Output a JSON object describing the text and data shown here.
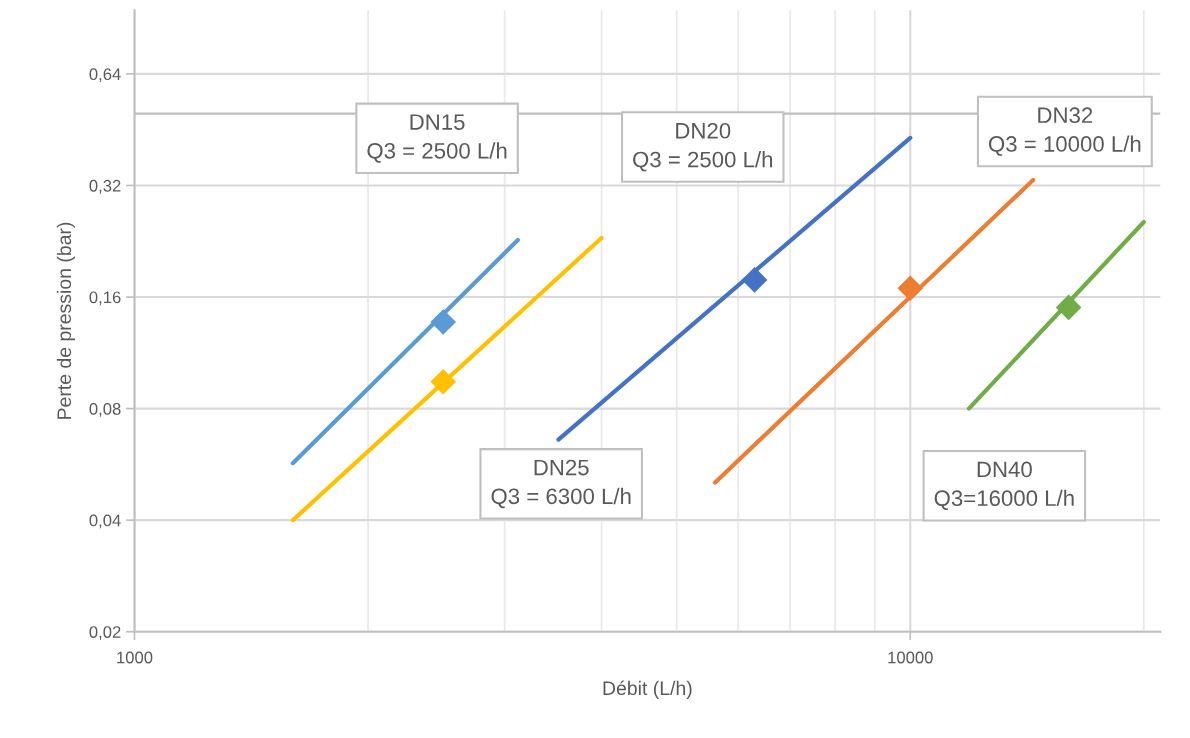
{
  "chart_data": {
    "type": "line",
    "xlabel": "Débit (L/h)",
    "ylabel": "Perte de pression (bar)",
    "log": "xy",
    "xlim": [
      1000,
      21000
    ],
    "xticks": [
      1000,
      10000
    ],
    "ylim": [
      0.02,
      0.95
    ],
    "yticks": [
      {
        "value": 0.02,
        "label": "0,02"
      },
      {
        "value": 0.04,
        "label": "0,04"
      },
      {
        "value": 0.08,
        "label": "0,08"
      },
      {
        "value": 0.16,
        "label": "0,16"
      },
      {
        "value": 0.32,
        "label": "0,32"
      },
      {
        "value": 0.64,
        "label": "0,64"
      }
    ],
    "grid": true,
    "legend": false,
    "line_style": "solid",
    "series": [
      {
        "color": "#5b9bd5",
        "x": [
          1600,
          3120
        ],
        "values": [
          0.057,
          0.228
        ]
      },
      {
        "color": "#ffc000",
        "x": [
          1600,
          4000
        ],
        "values": [
          0.04,
          0.231
        ]
      },
      {
        "color": "#4472c4",
        "x": [
          3520,
          10000
        ],
        "values": [
          0.066,
          0.43
        ]
      },
      {
        "color": "#ed7d31",
        "x": [
          5600,
          14400
        ],
        "values": [
          0.0505,
          0.331
        ]
      },
      {
        "color": "#70ad47",
        "x": [
          11900,
          20000
        ],
        "values": [
          0.08,
          0.255
        ]
      },
      {
        "type": "scatter",
        "marker": "diamond",
        "x": [
          2500,
          2500,
          6300,
          10000,
          16000
        ],
        "values": [
          0.137,
          0.0945,
          0.178,
          0.169,
          0.15
        ],
        "colors": [
          "#5b9bd5",
          "#ffc000",
          "#4472c4",
          "#ed7d31",
          "#70ad47"
        ]
      }
    ],
    "ref_lines": [
      {
        "axis": "y",
        "value": 0.5,
        "color": "#bfbfbf"
      }
    ],
    "annotations": [
      "DN15\nQ3 = 2500 L/h",
      "DN20\nQ3 = 2500 L/h",
      "DN32\nQ3 = 10000 L/h",
      "DN25\nQ3 = 6300 L/h",
      "DN40\nQ3=16000 L/h"
    ]
  }
}
